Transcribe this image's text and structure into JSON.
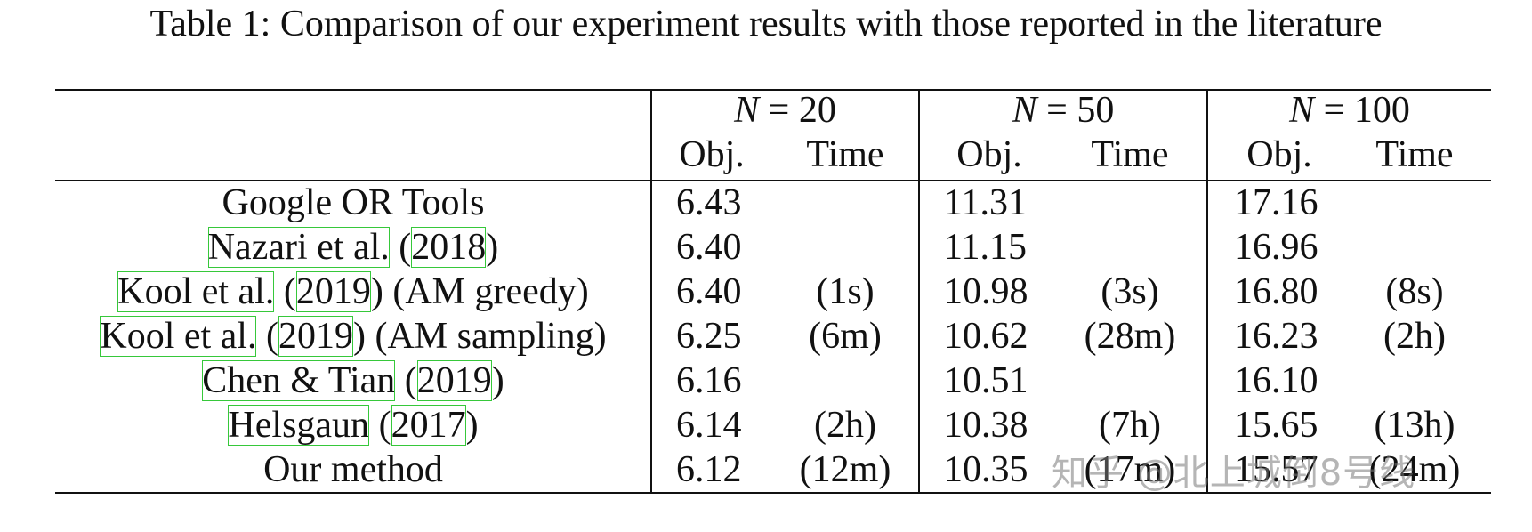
{
  "caption": "Table 1: Comparison of our experiment results with those reported in the literature",
  "groups": [
    {
      "n_symbol": "N",
      "equals": " = ",
      "value": "20"
    },
    {
      "n_symbol": "N",
      "equals": " = ",
      "value": "50"
    },
    {
      "n_symbol": "N",
      "equals": " = ",
      "value": "100"
    }
  ],
  "subheaders": {
    "obj": "Obj.",
    "time": "Time"
  },
  "rows": [
    {
      "method": [
        {
          "t": "Google OR Tools"
        }
      ],
      "vals": [
        "6.43",
        "",
        "11.31",
        "",
        "17.16",
        ""
      ]
    },
    {
      "method": [
        {
          "t": "Nazari et al.",
          "c": true
        },
        {
          "t": " ("
        },
        {
          "t": "2018",
          "c": true
        },
        {
          "t": ")"
        }
      ],
      "vals": [
        "6.40",
        "",
        "11.15",
        "",
        "16.96",
        ""
      ]
    },
    {
      "method": [
        {
          "t": "Kool et al.",
          "c": true
        },
        {
          "t": " ("
        },
        {
          "t": "2019",
          "c": true
        },
        {
          "t": ") (AM greedy)"
        }
      ],
      "vals": [
        "6.40",
        "(1s)",
        "10.98",
        "(3s)",
        "16.80",
        "(8s)"
      ]
    },
    {
      "method": [
        {
          "t": "Kool et al.",
          "c": true
        },
        {
          "t": " ("
        },
        {
          "t": "2019",
          "c": true
        },
        {
          "t": ") (AM sampling)"
        }
      ],
      "vals": [
        "6.25",
        "(6m)",
        "10.62",
        "(28m)",
        "16.23",
        "(2h)"
      ]
    },
    {
      "method": [
        {
          "t": "Chen & Tian",
          "c": true
        },
        {
          "t": " ("
        },
        {
          "t": "2019",
          "c": true
        },
        {
          "t": ")"
        }
      ],
      "vals": [
        "6.16",
        "",
        "10.51",
        "",
        "16.10",
        ""
      ]
    },
    {
      "method": [
        {
          "t": "Helsgaun",
          "c": true
        },
        {
          "t": " ("
        },
        {
          "t": "2017",
          "c": true
        },
        {
          "t": ")"
        }
      ],
      "vals": [
        "6.14",
        "(2h)",
        "10.38",
        "(7h)",
        "15.65",
        "(13h)"
      ]
    },
    {
      "method": [
        {
          "t": "Our method"
        }
      ],
      "vals": [
        "6.12",
        "(12m)",
        "10.35",
        "(17m)",
        "15.57",
        "(24m)"
      ]
    }
  ],
  "watermark": "知乎 @北上城倒8号线",
  "colors": {
    "text": "#111111",
    "citation_box": "#36c83a",
    "background": "#ffffff"
  }
}
